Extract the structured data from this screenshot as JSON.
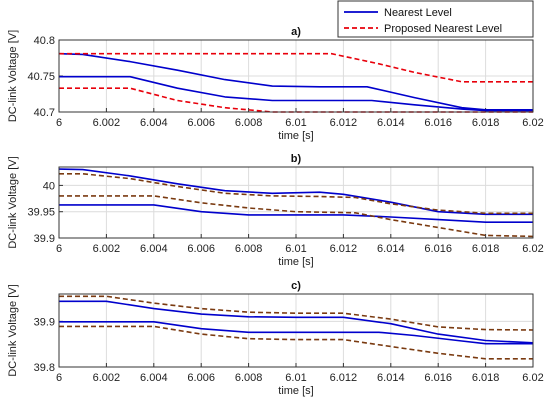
{
  "chart_data": [
    {
      "type": "line",
      "title": "a)",
      "xlabel": "time [s]",
      "ylabel": "DC-link Voltage [V]",
      "xlim": [
        6,
        6.02
      ],
      "ylim": [
        40.7,
        40.8
      ],
      "xticks": [
        "6",
        "6.002",
        "6.004",
        "6.006",
        "6.008",
        "6.01",
        "6.012",
        "6.014",
        "6.016",
        "6.018",
        "6.02"
      ],
      "yticks": [
        "40.7",
        "40.75",
        "40.8"
      ],
      "grid": true,
      "legend": {
        "position": "top-right",
        "entries": [
          "Nearest Level",
          "Proposed Nearest Level"
        ]
      },
      "series": [
        {
          "name": "Nearest Level",
          "color": "#0000cc",
          "dash": "solid",
          "x": [
            6,
            6.001,
            6.003,
            6.005,
            6.007,
            6.009,
            6.011,
            6.013,
            6.015,
            6.017,
            6.018,
            6.02
          ],
          "y": [
            40.781,
            40.78,
            40.77,
            40.758,
            40.745,
            40.736,
            40.735,
            40.735,
            40.72,
            40.706,
            40.703,
            40.703
          ]
        },
        {
          "name": "Nearest Level",
          "color": "#0000cc",
          "dash": "solid",
          "x": [
            6,
            6.003,
            6.005,
            6.007,
            6.009,
            6.011,
            6.0132,
            6.015,
            6.017,
            6.018,
            6.02
          ],
          "y": [
            40.749,
            40.749,
            40.733,
            40.721,
            40.716,
            40.716,
            40.716,
            40.71,
            40.704,
            40.702,
            40.702
          ]
        },
        {
          "name": "Proposed Nearest Level",
          "color": "#e8000b",
          "dash": "dashed",
          "x": [
            6,
            6.0115,
            6.0135,
            6.015,
            6.017,
            6.018,
            6.02
          ],
          "y": [
            40.781,
            40.781,
            40.767,
            40.755,
            40.742,
            40.742,
            40.742
          ]
        },
        {
          "name": "Proposed Nearest Level",
          "color": "#e8000b",
          "dash": "dashed",
          "x": [
            6,
            6.003,
            6.005,
            6.007,
            6.009,
            6.012,
            6.02
          ],
          "y": [
            40.733,
            40.733,
            40.716,
            40.706,
            40.7,
            40.7,
            40.7
          ]
        }
      ]
    },
    {
      "type": "line",
      "title": "b)",
      "xlabel": "time [s]",
      "ylabel": "DC-link Voltage [V]",
      "xlim": [
        6,
        6.02
      ],
      "ylim": [
        39.9,
        40.035
      ],
      "xticks": [
        "6",
        "6.002",
        "6.004",
        "6.006",
        "6.008",
        "6.01",
        "6.012",
        "6.014",
        "6.016",
        "6.018",
        "6.02"
      ],
      "yticks": [
        "39.9",
        "39.95",
        "40"
      ],
      "grid": true,
      "series": [
        {
          "color": "#0000cc",
          "dash": "solid",
          "x": [
            6,
            6.001,
            6.003,
            6.005,
            6.007,
            6.009,
            6.011,
            6.012,
            6.014,
            6.016,
            6.018,
            6.02
          ],
          "y": [
            40.031,
            40.03,
            40.018,
            40.003,
            39.99,
            39.985,
            39.987,
            39.983,
            39.968,
            39.95,
            39.945,
            39.945
          ]
        },
        {
          "color": "#0000cc",
          "dash": "solid",
          "x": [
            6,
            6.004,
            6.006,
            6.008,
            6.01,
            6.012,
            6.014,
            6.016,
            6.018,
            6.02
          ],
          "y": [
            39.963,
            39.963,
            39.95,
            39.944,
            39.944,
            39.944,
            39.94,
            39.935,
            39.93,
            39.93
          ]
        },
        {
          "color": "#7a3a10",
          "dash": "dashed",
          "x": [
            6,
            6.001,
            6.003,
            6.005,
            6.007,
            6.009,
            6.011,
            6.0125,
            6.014,
            6.016,
            6.018,
            6.02
          ],
          "y": [
            40.022,
            40.022,
            40.013,
            39.998,
            39.985,
            39.98,
            39.979,
            39.977,
            39.965,
            39.953,
            39.947,
            39.947
          ]
        },
        {
          "color": "#7a3a10",
          "dash": "dashed",
          "x": [
            6,
            6.004,
            6.006,
            6.008,
            6.01,
            6.0125,
            6.014,
            6.016,
            6.018,
            6.02
          ],
          "y": [
            39.98,
            39.98,
            39.967,
            39.957,
            39.95,
            39.948,
            39.935,
            39.92,
            39.905,
            39.903
          ]
        }
      ]
    },
    {
      "type": "line",
      "title": "c)",
      "xlabel": "time [s]",
      "ylabel": "DC-link Voltage [V]",
      "xlim": [
        6,
        6.02
      ],
      "ylim": [
        39.8,
        39.96
      ],
      "xticks": [
        "6",
        "6.002",
        "6.004",
        "6.006",
        "6.008",
        "6.01",
        "6.012",
        "6.014",
        "6.016",
        "6.018",
        "6.02"
      ],
      "yticks": [
        "39.8",
        "39.9"
      ],
      "grid": true,
      "series": [
        {
          "color": "#0000cc",
          "dash": "solid",
          "x": [
            6,
            6.002,
            6.004,
            6.006,
            6.008,
            6.01,
            6.012,
            6.014,
            6.016,
            6.018,
            6.02
          ],
          "y": [
            39.944,
            39.944,
            39.928,
            39.916,
            39.91,
            39.909,
            39.909,
            39.895,
            39.872,
            39.858,
            39.853
          ]
        },
        {
          "color": "#0000cc",
          "dash": "solid",
          "x": [
            6,
            6.004,
            6.006,
            6.008,
            6.01,
            6.0135,
            6.015,
            6.017,
            6.018,
            6.02
          ],
          "y": [
            39.899,
            39.899,
            39.884,
            39.876,
            39.876,
            39.876,
            39.869,
            39.857,
            39.851,
            39.851
          ]
        },
        {
          "color": "#7a3a10",
          "dash": "dashed",
          "x": [
            6,
            6.002,
            6.004,
            6.006,
            6.008,
            6.01,
            6.012,
            6.014,
            6.016,
            6.018,
            6.02
          ],
          "y": [
            39.955,
            39.955,
            39.94,
            39.928,
            39.92,
            39.918,
            39.918,
            39.905,
            39.888,
            39.882,
            39.881
          ]
        },
        {
          "color": "#7a3a10",
          "dash": "dashed",
          "x": [
            6,
            6.004,
            6.006,
            6.008,
            6.01,
            6.012,
            6.014,
            6.016,
            6.018,
            6.02
          ],
          "y": [
            39.889,
            39.889,
            39.872,
            39.862,
            39.86,
            39.86,
            39.845,
            39.83,
            39.818,
            39.818
          ]
        }
      ]
    }
  ]
}
